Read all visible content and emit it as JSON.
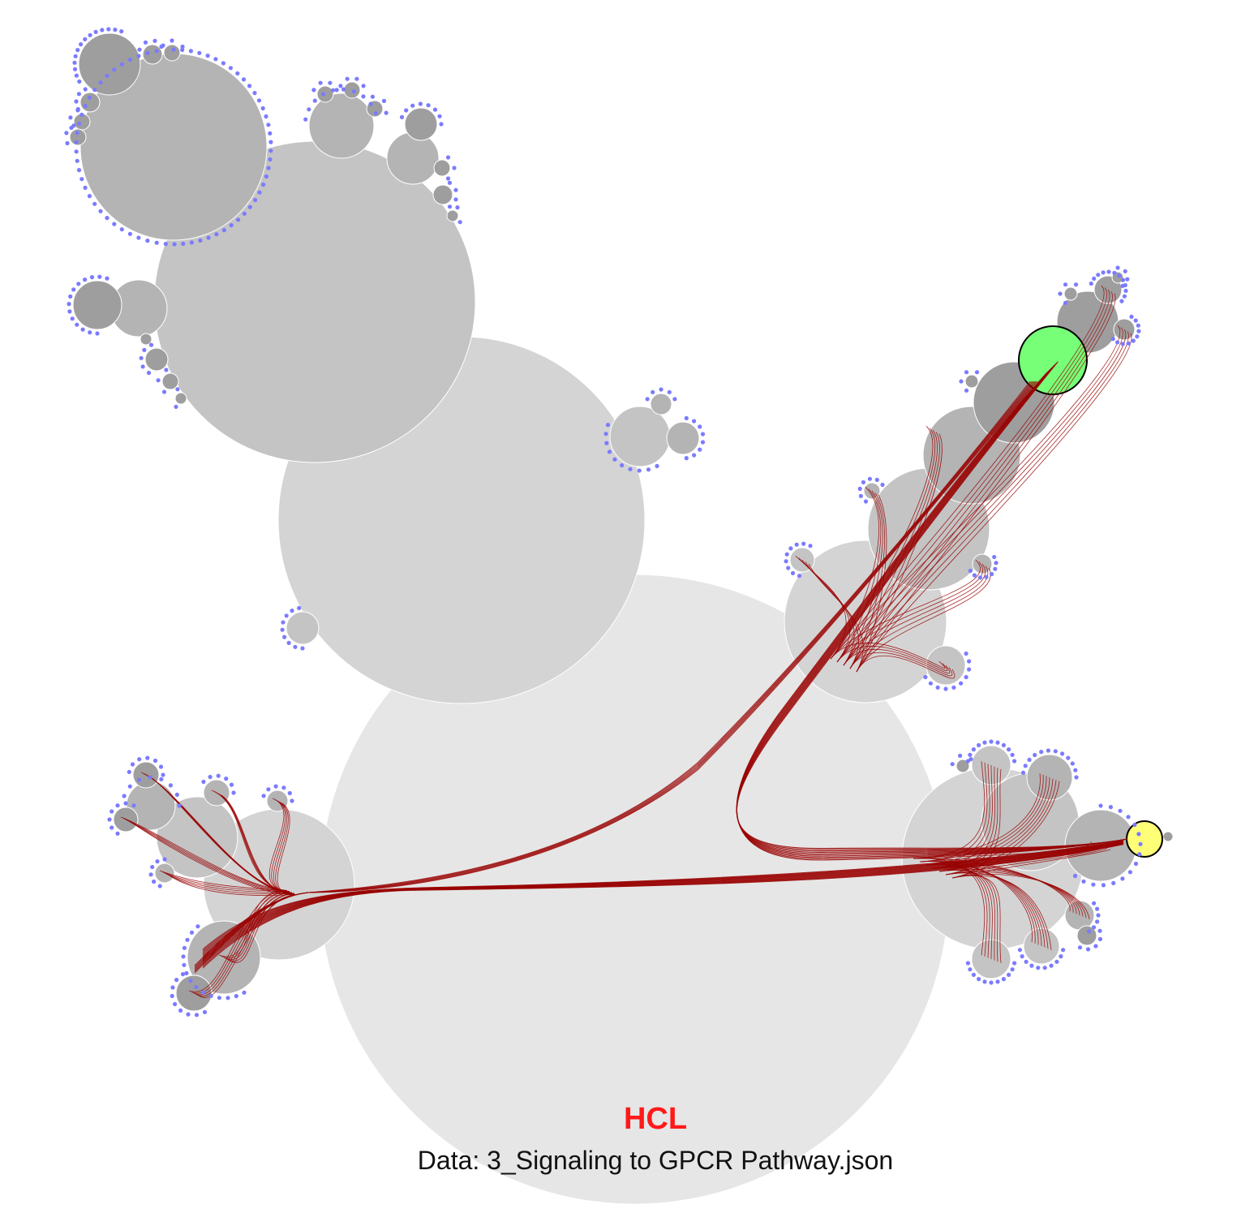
{
  "method_label": "HCL",
  "data_label": "Data: 3_Signaling to GPCR Pathway.json",
  "colors": {
    "method_label": "#ff1a1a",
    "edge": "#990000",
    "leaf": "#7b7bff",
    "source_node": "#77ff77",
    "target_node": "#ffff77",
    "level_0": "#e6e6e6",
    "level_1": "#d4d4d4",
    "level_2": "#c4c4c4",
    "level_3": "#b4b4b4",
    "level_4": "#9e9e9e"
  }
}
